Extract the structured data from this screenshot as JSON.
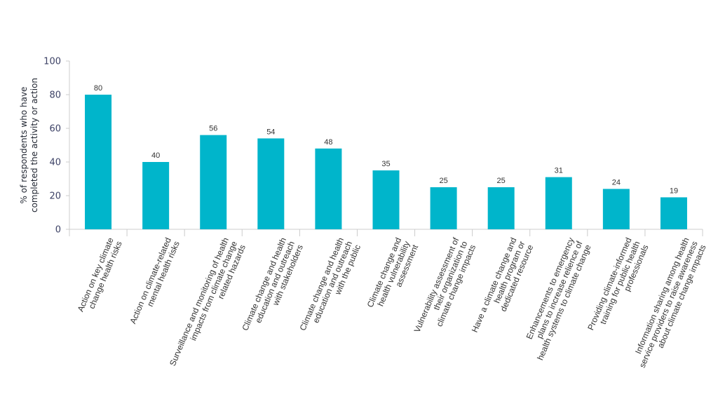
{
  "chart_data": {
    "type": "bar",
    "title": "",
    "xlabel": "",
    "ylabel": "% of respondents who have completed the activity or action",
    "ylabel_lines": [
      "% of respondents who have",
      "completed the activity or action"
    ],
    "ylim": [
      0,
      100
    ],
    "yticks": [
      0,
      20,
      40,
      60,
      80,
      100
    ],
    "grid": false,
    "legend": null,
    "bar_color": "#00B5CB",
    "categories": [
      "Action on key climate change health risks",
      "Action on climate-related mental health risks",
      "Surveillance and monitoring of health impacts from climate change related hazards",
      "Climate change and health education and outreach with stakeholders",
      "Climate change and health education and outreach with the public",
      "Climate change and health vulnerability assessment",
      "Vulnerability assessment of their organization to climate change impacts",
      "Have a climate change and health program or dedicated resource",
      "Enhancements to emergency plans to increase reliance of health systems to climate change",
      "Providing climate-informed training for public health professionals",
      "Information sharing among health service providers to raise awareness about climate change impacts"
    ],
    "category_lines": [
      [
        "Action on key climate",
        "change health risks"
      ],
      [
        "Action on climate-related",
        "mental health risks"
      ],
      [
        "Surveillance and monitoring of health",
        "impacts from climate change",
        "related hazards"
      ],
      [
        "Climate change and health",
        "education and outreach",
        "with stakeholders"
      ],
      [
        "Climate change and health",
        "education and outreach",
        "with the public"
      ],
      [
        "Climate change and",
        "health vulnerability",
        "assessment"
      ],
      [
        "Vulnerability assessment of",
        "their organization to",
        "climate change impacts"
      ],
      [
        "Have a climate change and",
        "health program or",
        "dedicated resource"
      ],
      [
        "Enhancements to emergency",
        "plans to increase relience of",
        "health systems to climate change"
      ],
      [
        "Providing climate-informed",
        "training for public health",
        "professionals"
      ],
      [
        "Information sharing among health",
        "service providers to raise awareness",
        "about climate change impacts"
      ]
    ],
    "values": [
      80,
      40,
      56,
      54,
      48,
      35,
      25,
      25,
      31,
      24,
      19
    ]
  }
}
